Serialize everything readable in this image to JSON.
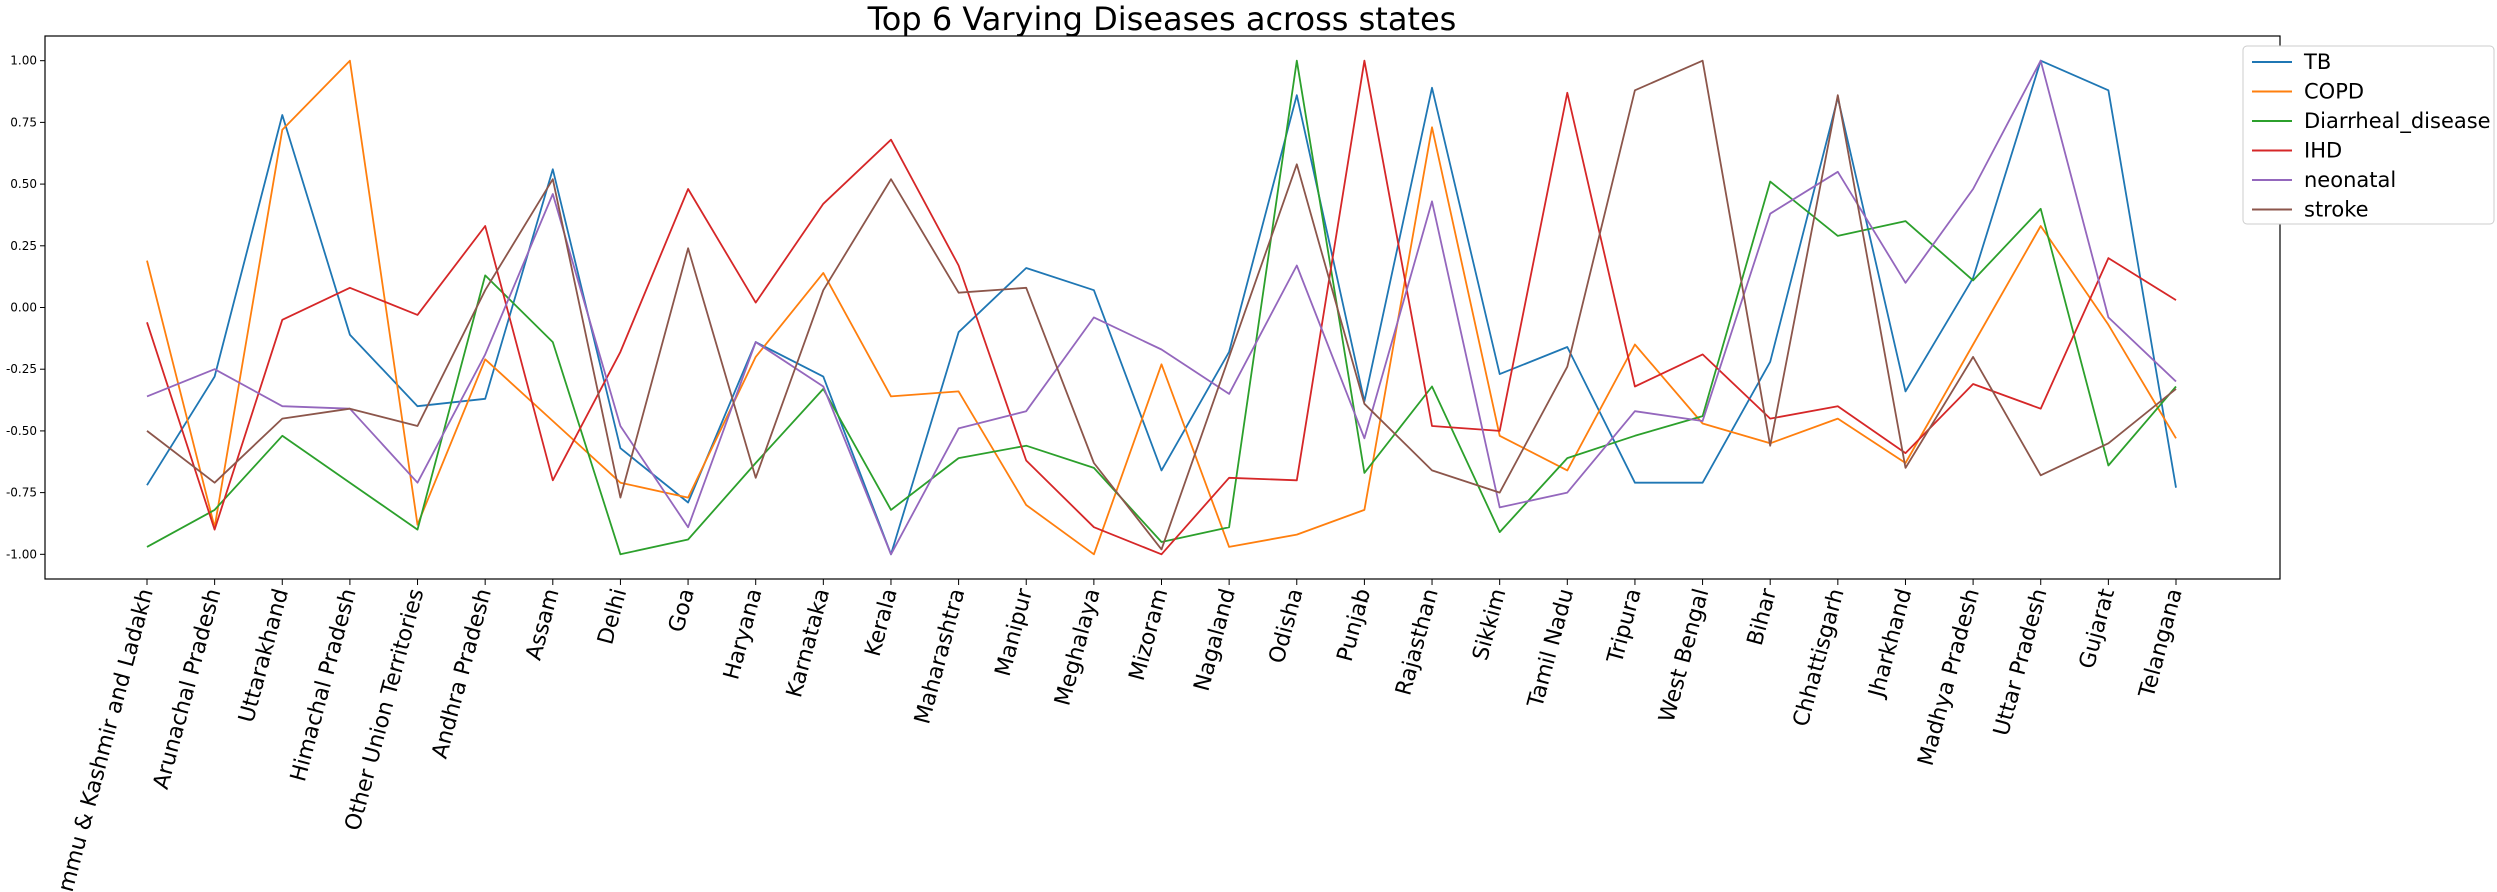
{
  "chart_data": {
    "type": "line",
    "title": "Top 6 Varying Diseases across states",
    "xlabel": "",
    "ylabel": "",
    "ylim": [
      -1.1,
      1.1
    ],
    "yticks": [
      "1.00",
      "0.75",
      "0.50",
      "0.25",
      "0.00",
      "-0.25",
      "-0.50",
      "-0.75",
      "-1.00"
    ],
    "ytick_values": [
      1.0,
      0.75,
      0.5,
      0.25,
      0.0,
      -0.25,
      -0.5,
      -0.75,
      -1.0
    ],
    "grid": false,
    "legend_position": "top-right",
    "categories": [
      "Jammu & Kashmir and Ladakh",
      "Arunachal Pradesh",
      "Uttarakhand",
      "Himachal Pradesh",
      "Other Union Territories",
      "Andhra Pradesh",
      "Assam",
      "Delhi",
      "Goa",
      "Haryana",
      "Karnataka",
      "Kerala",
      "Maharashtra",
      "Manipur",
      "Meghalaya",
      "Mizoram",
      "Nagaland",
      "Odisha",
      "Punjab",
      "Rajasthan",
      "Sikkim",
      "Tamil Nadu",
      "Tripura",
      "West Bengal",
      "Bihar",
      "Chhattisgarh",
      "Jharkhand",
      "Madhya Pradesh",
      "Uttar Pradesh",
      "Gujarat",
      "Telangana"
    ],
    "series": [
      {
        "name": "TB",
        "color": "#1f77b4",
        "values": [
          -0.72,
          -0.28,
          0.78,
          -0.11,
          -0.4,
          -0.37,
          0.56,
          -0.57,
          -0.79,
          -0.14,
          -0.28,
          -1.0,
          -0.1,
          0.16,
          0.07,
          -0.66,
          -0.18,
          0.86,
          -0.38,
          0.89,
          -0.27,
          -0.16,
          -0.71,
          -0.71,
          -0.22,
          0.85,
          -0.34,
          0.12,
          1.0,
          0.88,
          -0.73
        ]
      },
      {
        "name": "COPD",
        "color": "#ff7f0e",
        "values": [
          0.19,
          -0.89,
          0.72,
          1.0,
          -0.88,
          -0.21,
          -0.46,
          -0.71,
          -0.77,
          -0.2,
          0.14,
          -0.36,
          -0.34,
          -0.8,
          -1.0,
          -0.23,
          -0.97,
          -0.92,
          -0.82,
          0.73,
          -0.52,
          -0.66,
          -0.15,
          -0.47,
          -0.55,
          -0.45,
          -0.63,
          -0.15,
          0.33,
          -0.07,
          -0.53
        ]
      },
      {
        "name": "Diarrheal_disease",
        "color": "#2ca02c",
        "values": [
          -0.97,
          -0.82,
          -0.52,
          -0.71,
          -0.9,
          0.13,
          -0.14,
          -1.0,
          -0.94,
          -0.63,
          -0.33,
          -0.82,
          -0.61,
          -0.56,
          -0.65,
          -0.95,
          -0.89,
          1.0,
          -0.67,
          -0.32,
          -0.91,
          -0.61,
          -0.52,
          -0.44,
          0.51,
          0.29,
          0.35,
          0.11,
          0.4,
          -0.64,
          -0.32
        ]
      },
      {
        "name": "IHD",
        "color": "#d62728",
        "values": [
          -0.06,
          -0.9,
          -0.05,
          0.08,
          -0.03,
          0.33,
          -0.7,
          -0.18,
          0.48,
          0.02,
          0.42,
          0.68,
          0.17,
          -0.62,
          -0.89,
          -1.0,
          -0.69,
          -0.7,
          1.0,
          -0.48,
          -0.5,
          0.87,
          -0.32,
          -0.19,
          -0.45,
          -0.4,
          -0.59,
          -0.31,
          -0.41,
          0.2,
          0.03
        ]
      },
      {
        "name": "neonatal",
        "color": "#9467bd",
        "values": [
          -0.36,
          -0.25,
          -0.4,
          -0.41,
          -0.71,
          -0.19,
          0.46,
          -0.48,
          -0.89,
          -0.14,
          -0.32,
          -1.0,
          -0.49,
          -0.42,
          -0.04,
          -0.17,
          -0.35,
          0.17,
          -0.53,
          0.43,
          -0.81,
          -0.75,
          -0.42,
          -0.46,
          0.38,
          0.55,
          0.1,
          0.48,
          1.0,
          -0.04,
          -0.3
        ]
      },
      {
        "name": "stroke",
        "color": "#8c564b",
        "values": [
          -0.5,
          -0.71,
          -0.45,
          -0.41,
          -0.48,
          0.07,
          0.52,
          -0.77,
          0.24,
          -0.69,
          0.07,
          0.52,
          0.06,
          0.08,
          -0.63,
          -0.98,
          -0.2,
          0.58,
          -0.39,
          -0.66,
          -0.75,
          -0.24,
          0.88,
          1.0,
          -0.56,
          0.86,
          -0.65,
          -0.2,
          -0.68,
          -0.55,
          -0.33
        ]
      }
    ]
  }
}
